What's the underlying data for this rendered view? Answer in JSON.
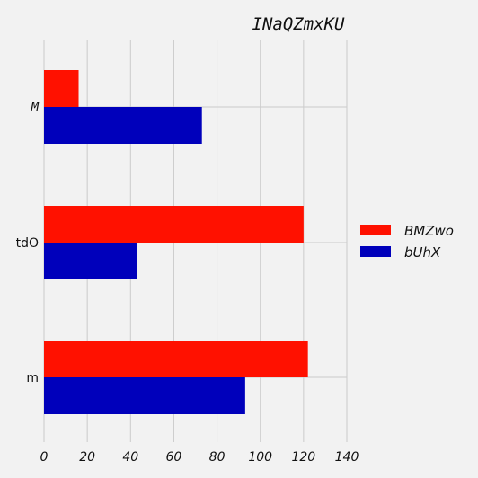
{
  "chart_data": {
    "type": "bar",
    "orientation": "horizontal",
    "title": "INaQZmxKU",
    "categories": [
      "M",
      "tdO",
      "m"
    ],
    "series": [
      {
        "name": "BMZwo",
        "values": [
          16,
          120,
          122
        ],
        "color": "#ff1100"
      },
      {
        "name": "bUhX",
        "values": [
          73,
          43,
          93
        ],
        "color": "#0000bb"
      }
    ],
    "xticks": [
      "0",
      "20",
      "40",
      "60",
      "80",
      "100",
      "120",
      "140"
    ],
    "xlim": [
      0,
      140
    ],
    "grid": true,
    "legend_position": "right"
  }
}
